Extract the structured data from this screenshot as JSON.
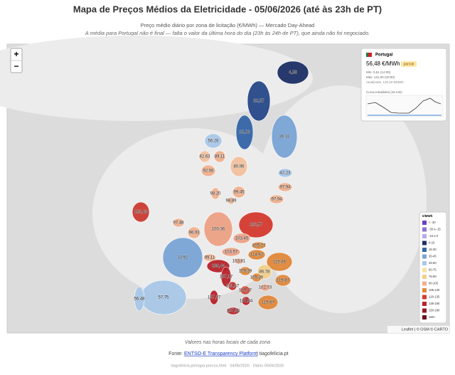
{
  "header": {
    "title": "Mapa de Preços Médios da Eletricidade - 05/06/2026 (até às 23h de PT)",
    "subtitle": "Preço médio diário por zona de licitação (€/MWh) — Mercado Day-Ahead",
    "note": "A média para Portugal não é final — falta o valor da última hora do dia (23h às 24h de PT), que ainda não foi negociado."
  },
  "map": {
    "zoom_in": "+",
    "zoom_out": "−",
    "zones": [
      {
        "label": "4,58",
        "color": "#1c2f66"
      },
      {
        "label": "20,27",
        "color": "#26488a"
      },
      {
        "label": "22,58",
        "color": "#3566a8"
      },
      {
        "label": "36,33",
        "color": "#7aa5d6"
      },
      {
        "label": "56,28",
        "color": "#a9c8e8"
      },
      {
        "label": "82,63",
        "color": "#f3c1a0"
      },
      {
        "label": "89,11",
        "color": "#f1b08e"
      },
      {
        "label": "80,96",
        "color": "#f3c1a0"
      },
      {
        "label": "92,56",
        "color": "#f1b08e"
      },
      {
        "label": "42,23",
        "color": "#a9c8e8"
      },
      {
        "label": "97,94",
        "color": "#f1b08e"
      },
      {
        "label": "99,45",
        "color": "#f1b08e"
      },
      {
        "label": "98,20",
        "color": "#f1b08e"
      },
      {
        "label": "98,89",
        "color": "#f1b08e"
      },
      {
        "label": "97,94",
        "color": "#f1b08e"
      },
      {
        "label": "102,43",
        "color": "#cc3b32"
      },
      {
        "label": "97,48",
        "color": "#f1b08e"
      },
      {
        "label": "96,93",
        "color": "#f1b08e"
      },
      {
        "label": "100,36",
        "color": "#eea285"
      },
      {
        "label": "123,57",
        "color": "#d43a2f"
      },
      {
        "label": "103,45",
        "color": "#eea285"
      },
      {
        "label": "105,27",
        "color": "#e1883b"
      },
      {
        "label": "114,92",
        "color": "#e1883b"
      },
      {
        "label": "115,86",
        "color": "#e1883b"
      },
      {
        "label": "32,52",
        "color": "#7aa5d6"
      },
      {
        "label": "103,57",
        "color": "#eea285"
      },
      {
        "label": "99,11",
        "color": "#f1b08e"
      },
      {
        "label": "103,81",
        "color": "#eea285"
      },
      {
        "label": "136,44",
        "color": "#b8232b"
      },
      {
        "label": "109,39",
        "color": "#e1883b"
      },
      {
        "label": "86,78",
        "color": "#f3d08a"
      },
      {
        "label": "105,26",
        "color": "#e1883b"
      },
      {
        "label": "115,87",
        "color": "#e1883b"
      },
      {
        "label": "137,17",
        "color": "#b8232b"
      },
      {
        "label": "131,17",
        "color": "#c4302f"
      },
      {
        "label": "117,17",
        "color": "#d04a3a"
      },
      {
        "label": "102,73",
        "color": "#eea285"
      },
      {
        "label": "137,17",
        "color": "#b8232b"
      },
      {
        "label": "57,75",
        "color": "#a9c8e8"
      },
      {
        "label": "56,48",
        "color": "#a9c8e8"
      },
      {
        "label": "137,84",
        "color": "#b8232b"
      },
      {
        "label": "115,87",
        "color": "#e1883b"
      },
      {
        "label": "137,34",
        "color": "#b8232b"
      }
    ],
    "info": {
      "country": "Portugal",
      "price": "56,48 €/MWh",
      "badge": "parcial",
      "min": "Mín: 0,51 (14:00)",
      "max": "Máx: 131,00 (20:00)",
      "updated": "Atualizado: 130,40 €/MWh",
      "curve": "Curva intradiária (15 min)"
    },
    "legend": {
      "title": "€/MWh",
      "items": [
        {
          "label": "< -30",
          "color": "#6a3fc4"
        },
        {
          "label": "-30 a -15",
          "color": "#8e6fd6"
        },
        {
          "label": "-15 a 0",
          "color": "#b9a9e8"
        },
        {
          "label": "0-15",
          "color": "#1c2f66"
        },
        {
          "label": "15-30",
          "color": "#3566a8"
        },
        {
          "label": "30-45",
          "color": "#7aa5d6"
        },
        {
          "label": "45-60",
          "color": "#a9c8e8"
        },
        {
          "label": "60-75",
          "color": "#f5e2a0"
        },
        {
          "label": "75-90",
          "color": "#f3d08a"
        },
        {
          "label": "90-105",
          "color": "#f1b08e"
        },
        {
          "label": "105-120",
          "color": "#e1883b"
        },
        {
          "label": "120-135",
          "color": "#d43a2f"
        },
        {
          "label": "135-150",
          "color": "#b8232b"
        },
        {
          "label": "150-180",
          "color": "#951824"
        },
        {
          "label": "180+",
          "color": "#6b0f1c"
        }
      ]
    },
    "attribution": "Leaflet | © OSM © CARTO"
  },
  "footer": {
    "hours": "Valores nas horas locais de cada zona",
    "source_prefix": "Fonte:",
    "source_link": "ENTSO-E Transparency Platform",
    "source_suffix": "| tiagofelicia.pt",
    "meta": "tiagofelicia.pt/mapa-precos.html · 04/06/2026 · Diário 05/06/2026"
  }
}
